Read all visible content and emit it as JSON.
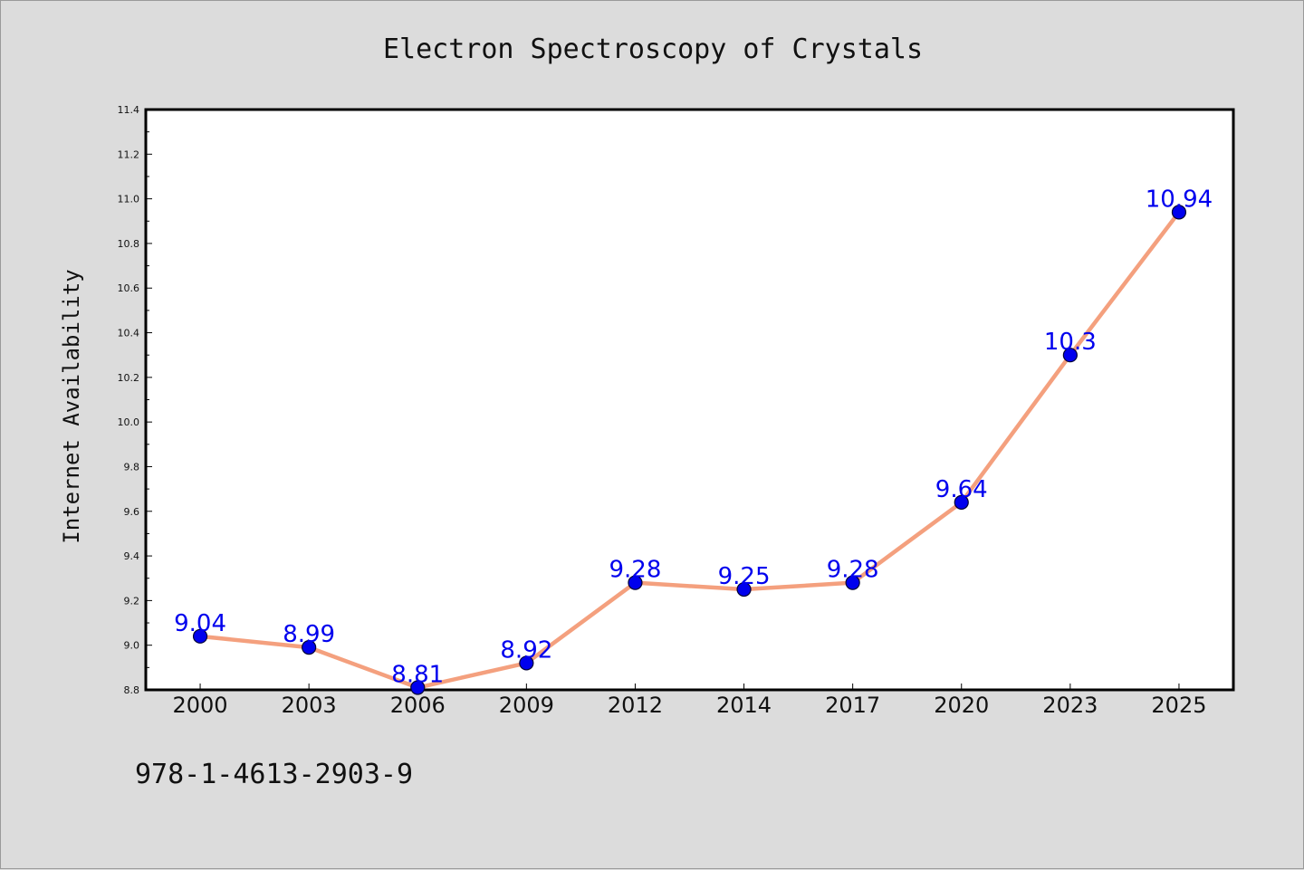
{
  "chart_data": {
    "type": "line",
    "title": "Electron Spectroscopy of Crystals",
    "xlabel": "",
    "ylabel": "Internet Availability",
    "categories": [
      "2000",
      "2003",
      "2006",
      "2009",
      "2012",
      "2014",
      "2017",
      "2020",
      "2023",
      "2025"
    ],
    "series": [
      {
        "values": [
          9.04,
          8.99,
          8.81,
          8.92,
          9.28,
          9.25,
          9.28,
          9.64,
          10.3,
          10.94
        ]
      }
    ],
    "data_labels": [
      "9.04",
      "8.99",
      "8.81",
      "8.92",
      "9.28",
      "9.25",
      "9.28",
      "9.64",
      "10.3",
      "10.94"
    ],
    "ylim": [
      8.8,
      11.4
    ],
    "yticks": [
      "8.8",
      "9.0",
      "9.2",
      "9.4",
      "9.6",
      "9.8",
      "10.0",
      "10.2",
      "10.4",
      "10.6",
      "10.8",
      "11.0",
      "11.2",
      "11.4"
    ],
    "grid": false,
    "legend": "none",
    "colors": {
      "line": "#f4a07e",
      "marker_fill": "#0000ee",
      "marker_stroke": "#000033",
      "data_label": "#0000ee"
    }
  },
  "footer": {
    "isbn": "978-1-4613-2903-9"
  }
}
